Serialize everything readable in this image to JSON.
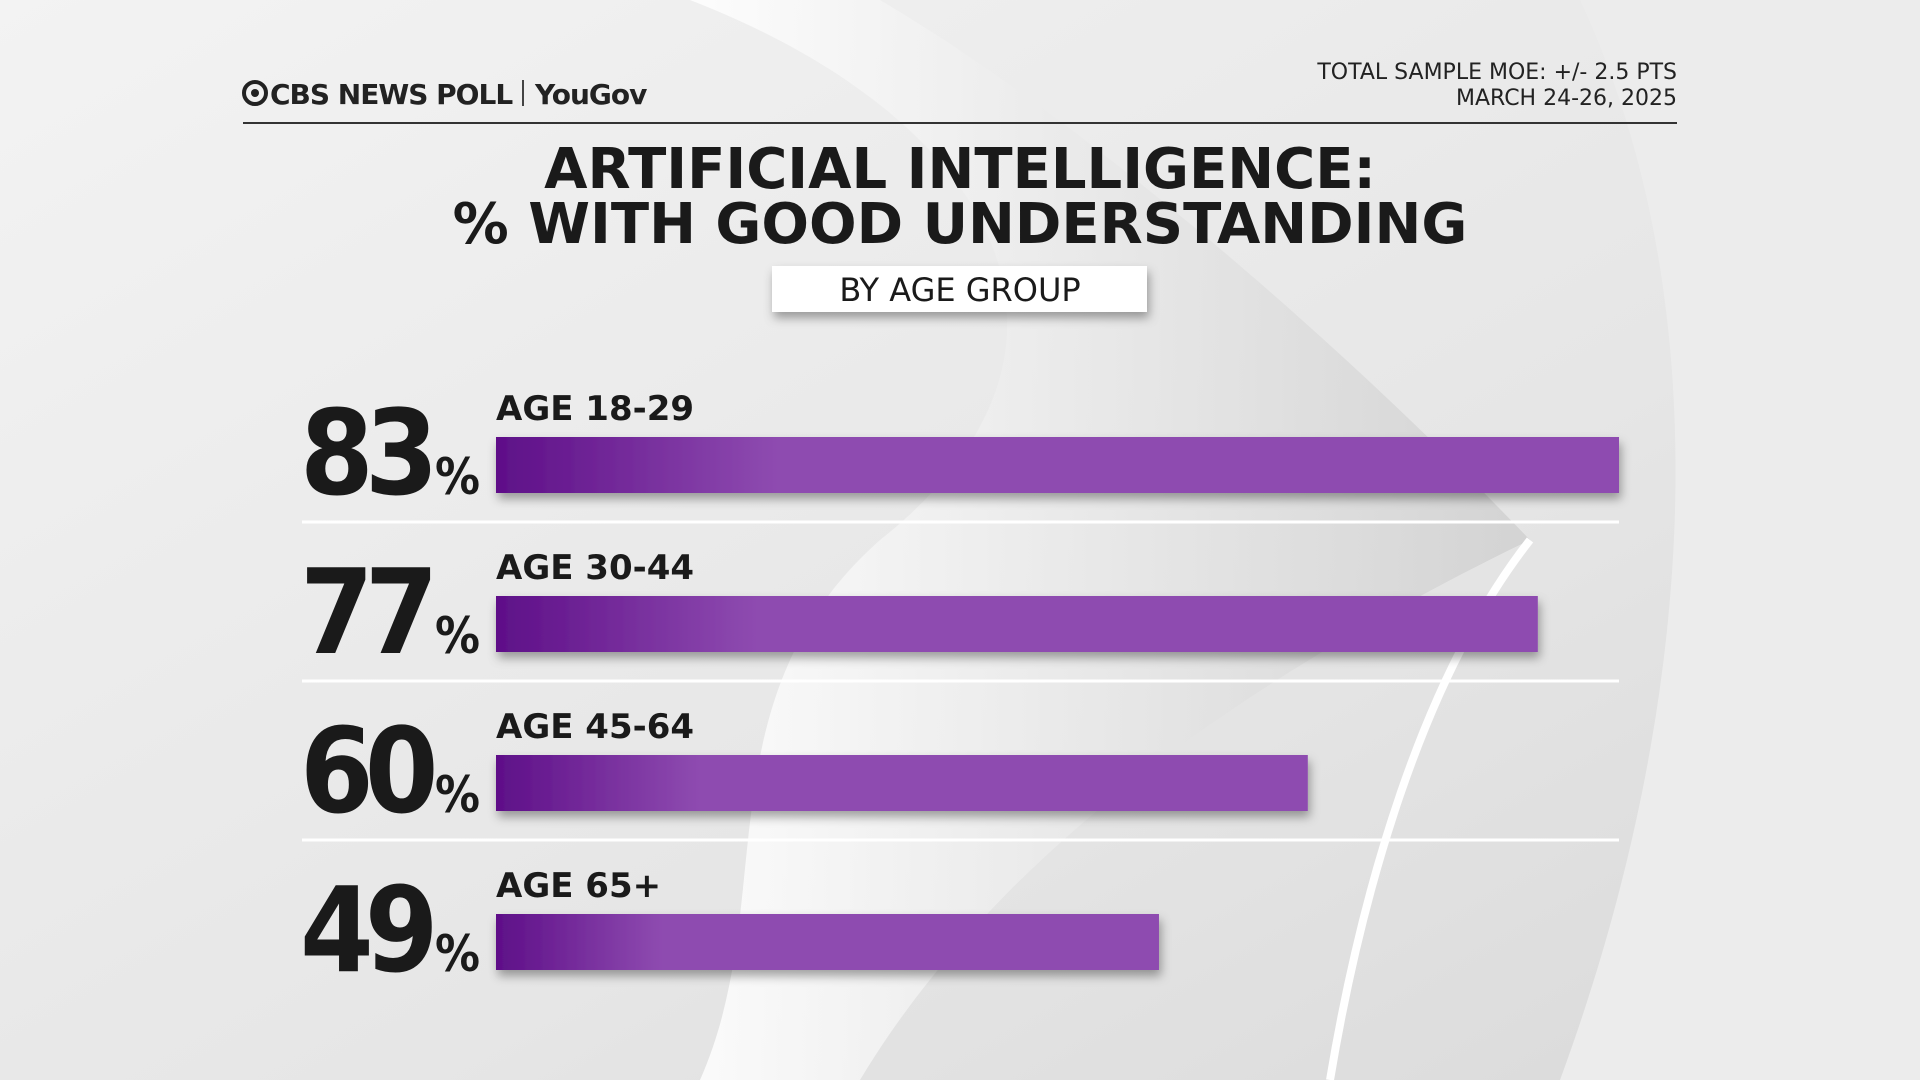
{
  "header": {
    "brand": "CBS NEWS POLL",
    "partner": "YouGov",
    "moe": "TOTAL SAMPLE MOE: +/- 2.5 PTS",
    "dates": "MARCH 24-26, 2025"
  },
  "chart_data": {
    "type": "bar",
    "orientation": "horizontal",
    "title": [
      "ARTIFICIAL INTELLIGENCE:",
      "% WITH GOOD UNDERSTANDING"
    ],
    "subtitle": "BY AGE GROUP",
    "categories": [
      "AGE 18-29",
      "AGE 30-44",
      "AGE 45-64",
      "AGE 65+"
    ],
    "values": [
      83,
      77,
      60,
      49
    ],
    "value_labels": [
      "83%",
      "77%",
      "60%",
      "49%"
    ],
    "color": "#8e4bb0"
  }
}
